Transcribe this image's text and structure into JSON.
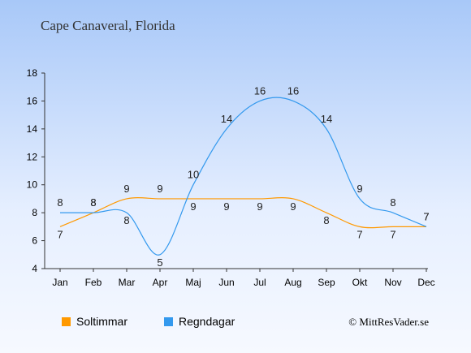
{
  "title": "Cape Canaveral, Florida",
  "credit": "© MittResVader.se",
  "chart_data": {
    "type": "line",
    "categories": [
      "Jan",
      "Feb",
      "Mar",
      "Apr",
      "Maj",
      "Jun",
      "Jul",
      "Aug",
      "Sep",
      "Okt",
      "Nov",
      "Dec"
    ],
    "ylim": [
      4,
      18
    ],
    "yticks": [
      "4",
      "6",
      "8",
      "10",
      "12",
      "14",
      "16",
      "18"
    ],
    "legend_position": "bottom",
    "series": [
      {
        "name": "Soltimmar",
        "color": "#ff9900",
        "values": [
          7,
          8,
          9,
          9,
          9,
          9,
          9,
          9,
          8,
          7,
          7,
          7
        ],
        "labels": [
          "7",
          "8",
          "9",
          "9",
          "9",
          "9",
          "9",
          "9",
          "8",
          "7",
          "7",
          "7"
        ]
      },
      {
        "name": "Regndagar",
        "color": "#3399ee",
        "values": [
          8,
          8,
          8,
          5,
          10,
          14,
          16,
          16,
          14,
          9,
          8,
          7
        ],
        "labels": [
          "8",
          "8",
          "8",
          "5",
          "10",
          "14",
          "16",
          "16",
          "14",
          "9",
          "8",
          "7"
        ]
      }
    ]
  }
}
